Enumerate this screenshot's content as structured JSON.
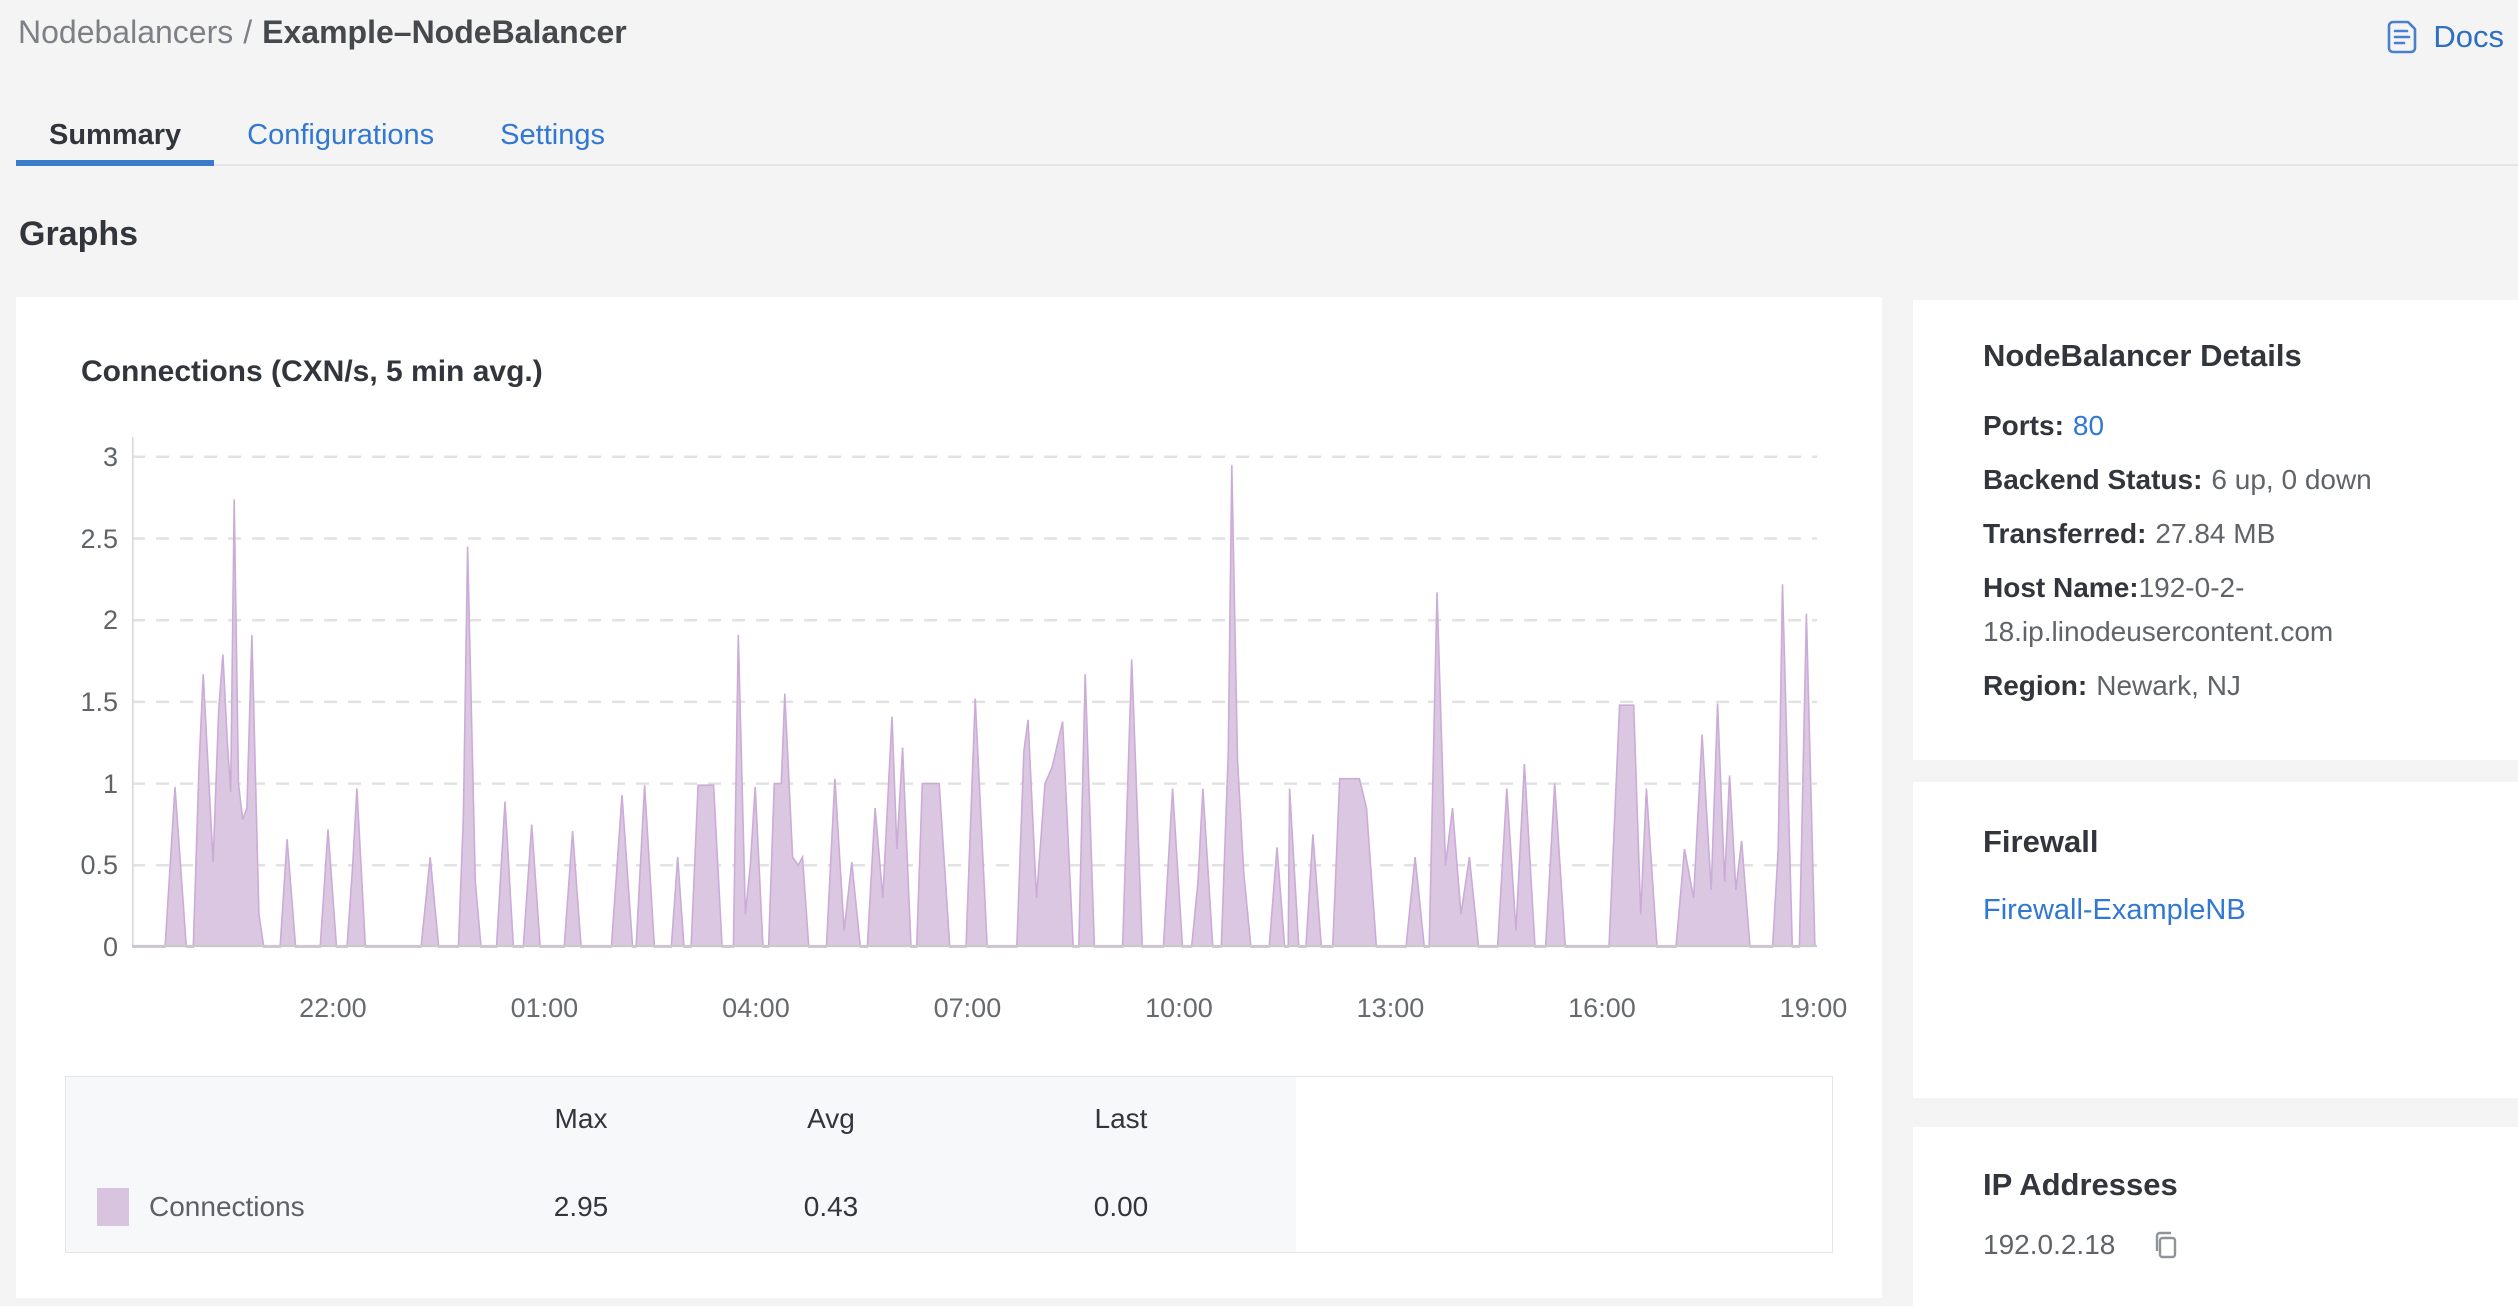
{
  "header": {
    "breadcrumb": {
      "section": "Nodebalancers",
      "separator": "/",
      "current": "Example–NodeBalancer"
    },
    "docs": {
      "label": "Docs"
    }
  },
  "tabs": [
    {
      "label": "Summary",
      "active": true
    },
    {
      "label": "Configurations",
      "active": false
    },
    {
      "label": "Settings",
      "active": false
    }
  ],
  "section_title": "Graphs",
  "chart_data": {
    "type": "area",
    "title": "Connections (CXN/s, 5 min avg.)",
    "xlabel": "",
    "ylabel": "",
    "x_range": [
      19.15,
      43.05
    ],
    "ylim": [
      0,
      3.06
    ],
    "grid": "dashed horizontal",
    "colors": {
      "fill": "#dcc7e3",
      "stroke": "#cbacd6",
      "grid": "#e1e2e5",
      "axis": "#d6d8da",
      "baseline": "#c7c9cb"
    },
    "y_ticks": [
      {
        "value": 0,
        "label": "0"
      },
      {
        "value": 0.5,
        "label": "0.5"
      },
      {
        "value": 1,
        "label": "1"
      },
      {
        "value": 1.5,
        "label": "1.5"
      },
      {
        "value": 2,
        "label": "2"
      },
      {
        "value": 2.5,
        "label": "2.5"
      },
      {
        "value": 3,
        "label": "3"
      }
    ],
    "x_ticks": [
      {
        "value": 22,
        "label": "22:00"
      },
      {
        "value": 25,
        "label": "01:00"
      },
      {
        "value": 28,
        "label": "04:00"
      },
      {
        "value": 31,
        "label": "07:00"
      },
      {
        "value": 34,
        "label": "10:00"
      },
      {
        "value": 37,
        "label": "13:00"
      },
      {
        "value": 40,
        "label": "16:00"
      },
      {
        "value": 43,
        "label": "19:00"
      }
    ],
    "series": [
      {
        "name": "Connections",
        "points": [
          [
            19.15,
            0
          ],
          [
            19.3,
            0
          ],
          [
            19.62,
            0
          ],
          [
            19.76,
            0.98
          ],
          [
            19.92,
            0
          ],
          [
            20.02,
            0
          ],
          [
            20.1,
            1.1
          ],
          [
            20.16,
            1.67
          ],
          [
            20.3,
            0.52
          ],
          [
            20.38,
            1.45
          ],
          [
            20.44,
            1.79
          ],
          [
            20.5,
            1.27
          ],
          [
            20.55,
            0.95
          ],
          [
            20.6,
            2.74
          ],
          [
            20.66,
            1.0
          ],
          [
            20.72,
            0.78
          ],
          [
            20.78,
            0.85
          ],
          [
            20.85,
            1.91
          ],
          [
            20.95,
            0.2
          ],
          [
            21.02,
            0
          ],
          [
            21.25,
            0
          ],
          [
            21.35,
            0.66
          ],
          [
            21.47,
            0
          ],
          [
            21.82,
            0
          ],
          [
            21.93,
            0.72
          ],
          [
            22.05,
            0
          ],
          [
            22.2,
            0
          ],
          [
            22.28,
            0.5
          ],
          [
            22.34,
            0.97
          ],
          [
            22.46,
            0
          ],
          [
            23.25,
            0
          ],
          [
            23.38,
            0.55
          ],
          [
            23.5,
            0
          ],
          [
            23.78,
            0
          ],
          [
            23.85,
            0.8
          ],
          [
            23.91,
            2.45
          ],
          [
            24.02,
            0.4
          ],
          [
            24.1,
            0
          ],
          [
            24.32,
            0
          ],
          [
            24.44,
            0.89
          ],
          [
            24.56,
            0
          ],
          [
            24.7,
            0
          ],
          [
            24.82,
            0.75
          ],
          [
            24.94,
            0
          ],
          [
            25.28,
            0
          ],
          [
            25.4,
            0.71
          ],
          [
            25.52,
            0
          ],
          [
            25.95,
            0
          ],
          [
            26.1,
            0.93
          ],
          [
            26.25,
            0
          ],
          [
            26.3,
            0
          ],
          [
            26.42,
            0.99
          ],
          [
            26.56,
            0
          ],
          [
            26.8,
            0
          ],
          [
            26.89,
            0.55
          ],
          [
            26.98,
            0
          ],
          [
            27.08,
            0
          ],
          [
            27.18,
            0.99
          ],
          [
            27.4,
            0.99
          ],
          [
            27.52,
            0
          ],
          [
            27.68,
            0
          ],
          [
            27.75,
            1.91
          ],
          [
            27.85,
            0.2
          ],
          [
            27.92,
            0.5
          ],
          [
            27.99,
            0.98
          ],
          [
            28.1,
            0
          ],
          [
            28.18,
            0
          ],
          [
            28.26,
            1.0
          ],
          [
            28.36,
            1.0
          ],
          [
            28.41,
            1.55
          ],
          [
            28.52,
            0.55
          ],
          [
            28.6,
            0.5
          ],
          [
            28.66,
            0.55
          ],
          [
            28.75,
            0
          ],
          [
            29.0,
            0
          ],
          [
            29.12,
            1.03
          ],
          [
            29.25,
            0.1
          ],
          [
            29.36,
            0.52
          ],
          [
            29.48,
            0
          ],
          [
            29.58,
            0
          ],
          [
            29.69,
            0.85
          ],
          [
            29.8,
            0.3
          ],
          [
            29.93,
            1.41
          ],
          [
            30.0,
            0.6
          ],
          [
            30.08,
            1.22
          ],
          [
            30.2,
            0
          ],
          [
            30.28,
            0
          ],
          [
            30.36,
            1.0
          ],
          [
            30.6,
            1.0
          ],
          [
            30.75,
            0
          ],
          [
            30.98,
            0
          ],
          [
            31.11,
            1.52
          ],
          [
            31.28,
            0
          ],
          [
            31.7,
            0
          ],
          [
            31.8,
            1.2
          ],
          [
            31.86,
            1.39
          ],
          [
            31.98,
            0.3
          ],
          [
            32.1,
            1.0
          ],
          [
            32.2,
            1.1
          ],
          [
            32.35,
            1.38
          ],
          [
            32.5,
            0
          ],
          [
            32.58,
            0
          ],
          [
            32.67,
            1.67
          ],
          [
            32.8,
            0
          ],
          [
            33.2,
            0
          ],
          [
            33.33,
            1.76
          ],
          [
            33.48,
            0
          ],
          [
            33.78,
            0
          ],
          [
            33.91,
            0.97
          ],
          [
            34.05,
            0
          ],
          [
            34.18,
            0
          ],
          [
            34.27,
            0.4
          ],
          [
            34.34,
            0.97
          ],
          [
            34.48,
            0
          ],
          [
            34.6,
            0
          ],
          [
            34.7,
            1.2
          ],
          [
            34.75,
            2.95
          ],
          [
            34.83,
            1.15
          ],
          [
            34.92,
            0.45
          ],
          [
            35.02,
            0
          ],
          [
            35.28,
            0
          ],
          [
            35.39,
            0.61
          ],
          [
            35.5,
            0
          ],
          [
            35.55,
            0
          ],
          [
            35.57,
            0.97
          ],
          [
            35.7,
            0
          ],
          [
            35.8,
            0
          ],
          [
            35.9,
            0.69
          ],
          [
            36.02,
            0
          ],
          [
            36.18,
            0
          ],
          [
            36.28,
            1.03
          ],
          [
            36.56,
            1.03
          ],
          [
            36.66,
            0.85
          ],
          [
            36.8,
            0
          ],
          [
            37.22,
            0
          ],
          [
            37.35,
            0.55
          ],
          [
            37.48,
            0
          ],
          [
            37.55,
            0
          ],
          [
            37.66,
            2.17
          ],
          [
            37.78,
            0.5
          ],
          [
            37.88,
            0.85
          ],
          [
            38.0,
            0.2
          ],
          [
            38.12,
            0.55
          ],
          [
            38.25,
            0
          ],
          [
            38.52,
            0
          ],
          [
            38.65,
            0.97
          ],
          [
            38.78,
            0.1
          ],
          [
            38.9,
            1.12
          ],
          [
            39.05,
            0
          ],
          [
            39.2,
            0
          ],
          [
            39.33,
            1.0
          ],
          [
            39.48,
            0
          ],
          [
            40.1,
            0
          ],
          [
            40.25,
            1.48
          ],
          [
            40.45,
            1.48
          ],
          [
            40.55,
            0.2
          ],
          [
            40.63,
            0.97
          ],
          [
            40.78,
            0
          ],
          [
            41.05,
            0
          ],
          [
            41.17,
            0.6
          ],
          [
            41.3,
            0.3
          ],
          [
            41.42,
            1.3
          ],
          [
            41.55,
            0.35
          ],
          [
            41.64,
            1.49
          ],
          [
            41.74,
            0.4
          ],
          [
            41.81,
            1.05
          ],
          [
            41.9,
            0.35
          ],
          [
            41.98,
            0.65
          ],
          [
            42.1,
            0
          ],
          [
            42.42,
            0
          ],
          [
            42.5,
            0.6
          ],
          [
            42.56,
            2.22
          ],
          [
            42.7,
            0
          ],
          [
            42.8,
            0
          ],
          [
            42.9,
            2.04
          ],
          [
            43.02,
            0
          ]
        ]
      }
    ],
    "legend": {
      "position": "bottom table",
      "headers": [
        "Max",
        "Avg",
        "Last"
      ],
      "series_label": "Connections",
      "values": [
        "2.95",
        "0.43",
        "0.00"
      ],
      "swatch_color": "#d9c4df"
    }
  },
  "sidebar": {
    "details": {
      "title": "NodeBalancer Details",
      "rows": [
        {
          "label": "Ports:",
          "value": "80"
        },
        {
          "label": "Backend Status:",
          "value": "6 up, 0 down"
        },
        {
          "label": "Transferred:",
          "value": "27.84 MB"
        },
        {
          "label": "Host Name:",
          "value": "192-0-2-18.ip.linodeusercontent.com"
        },
        {
          "label": "Region:",
          "value": "Newark, NJ"
        }
      ]
    },
    "firewall": {
      "title": "Firewall",
      "link": "Firewall-ExampleNB"
    },
    "ip": {
      "title": "IP Addresses",
      "address": "192.0.2.18"
    }
  }
}
